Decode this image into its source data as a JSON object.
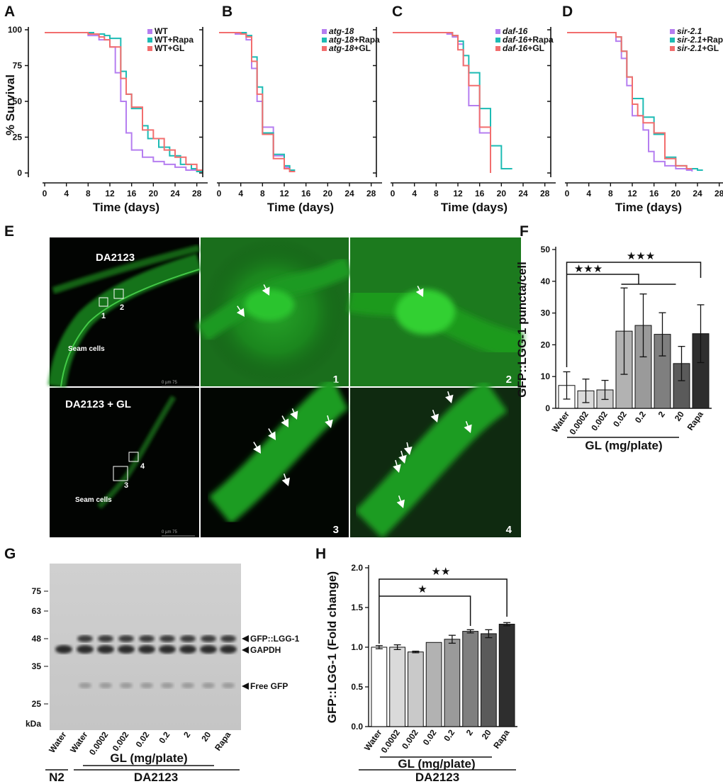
{
  "panel_labels": {
    "A": "A",
    "B": "B",
    "C": "C",
    "D": "D",
    "E": "E",
    "F": "F",
    "G": "G",
    "H": "H"
  },
  "colors": {
    "purple": "#b57ef0",
    "teal": "#1dbbb4",
    "salmon": "#f26e6e"
  },
  "survival_axis": {
    "ylabel": "% Survival",
    "xlabel": "Time (days)",
    "yticks": [
      "100",
      "75",
      "50",
      "25",
      "0"
    ],
    "xticks": [
      "0",
      "4",
      "8",
      "12",
      "16",
      "20",
      "24",
      "28"
    ]
  },
  "chart_data": [
    {
      "panel": "A",
      "type": "line",
      "xlabel": "Time (days)",
      "ylabel": "% Survival",
      "xlim": [
        0,
        30
      ],
      "ylim": [
        0,
        100
      ],
      "series": [
        {
          "name": "WT",
          "color": "#b57ef0",
          "steps": [
            [
              0,
              98
            ],
            [
              8,
              96
            ],
            [
              10,
              93
            ],
            [
              12,
              88
            ],
            [
              13,
              70
            ],
            [
              14,
              50
            ],
            [
              15,
              28
            ],
            [
              16,
              16
            ],
            [
              18,
              11
            ],
            [
              20,
              8
            ],
            [
              22,
              6
            ],
            [
              24,
              4
            ],
            [
              26,
              2
            ],
            [
              28,
              1
            ],
            [
              29,
              1
            ]
          ]
        },
        {
          "name": "WT+Rapa",
          "color": "#1dbbb4",
          "steps": [
            [
              0,
              98
            ],
            [
              9,
              97
            ],
            [
              11,
              96
            ],
            [
              12,
              94
            ],
            [
              14,
              71
            ],
            [
              15,
              55
            ],
            [
              16,
              45
            ],
            [
              18,
              33
            ],
            [
              19,
              24
            ],
            [
              21,
              18
            ],
            [
              23,
              12
            ],
            [
              25,
              6
            ],
            [
              27,
              3
            ],
            [
              28,
              1
            ],
            [
              29,
              1
            ]
          ]
        },
        {
          "name": "WT+GL",
          "color": "#f26e6e",
          "steps": [
            [
              0,
              98
            ],
            [
              8,
              97
            ],
            [
              10,
              95
            ],
            [
              11,
              93
            ],
            [
              12,
              88
            ],
            [
              14,
              66
            ],
            [
              15,
              55
            ],
            [
              16,
              46
            ],
            [
              18,
              30
            ],
            [
              20,
              24
            ],
            [
              22,
              16
            ],
            [
              24,
              11
            ],
            [
              26,
              6
            ],
            [
              28,
              2
            ],
            [
              29,
              2
            ]
          ]
        }
      ]
    },
    {
      "panel": "B",
      "type": "line",
      "xlabel": "Time (days)",
      "ylabel": "% Survival",
      "xlim": [
        0,
        30
      ],
      "ylim": [
        0,
        100
      ],
      "series": [
        {
          "name": "atg-18",
          "color": "#b57ef0",
          "steps": [
            [
              0,
              98
            ],
            [
              3,
              97
            ],
            [
              5,
              93
            ],
            [
              6,
              73
            ],
            [
              7,
              50
            ],
            [
              8,
              32
            ],
            [
              10,
              12
            ],
            [
              12,
              4
            ],
            [
              13,
              1
            ],
            [
              14,
              1
            ]
          ]
        },
        {
          "name": "atg-18+Rapa",
          "color": "#1dbbb4",
          "steps": [
            [
              0,
              98
            ],
            [
              4,
              98
            ],
            [
              5,
              96
            ],
            [
              6,
              81
            ],
            [
              7,
              60
            ],
            [
              8,
              28
            ],
            [
              10,
              13
            ],
            [
              12,
              5
            ],
            [
              13,
              2
            ],
            [
              14,
              2
            ]
          ]
        },
        {
          "name": "atg-18+GL",
          "color": "#f26e6e",
          "steps": [
            [
              0,
              98
            ],
            [
              4,
              97
            ],
            [
              5,
              95
            ],
            [
              6,
              78
            ],
            [
              7,
              55
            ],
            [
              8,
              27
            ],
            [
              10,
              10
            ],
            [
              12,
              3
            ],
            [
              13,
              1
            ],
            [
              14,
              1
            ]
          ]
        }
      ]
    },
    {
      "panel": "C",
      "type": "line",
      "xlabel": "Time (days)",
      "ylabel": "% Survival",
      "xlim": [
        0,
        30
      ],
      "ylim": [
        0,
        100
      ],
      "series": [
        {
          "name": "daf-16",
          "color": "#b57ef0",
          "steps": [
            [
              0,
              98
            ],
            [
              10,
              97
            ],
            [
              11,
              95
            ],
            [
              12,
              90
            ],
            [
              13,
              75
            ],
            [
              14,
              47
            ],
            [
              16,
              28
            ],
            [
              18,
              0
            ]
          ]
        },
        {
          "name": "daf-16+Rapa",
          "color": "#1dbbb4",
          "steps": [
            [
              0,
              98
            ],
            [
              10,
              98
            ],
            [
              11,
              96
            ],
            [
              12,
              92
            ],
            [
              13,
              82
            ],
            [
              14,
              70
            ],
            [
              16,
              45
            ],
            [
              18,
              19
            ],
            [
              20,
              3
            ],
            [
              22,
              3
            ]
          ]
        },
        {
          "name": "daf-16+GL",
          "color": "#f26e6e",
          "steps": [
            [
              0,
              98
            ],
            [
              9,
              98
            ],
            [
              11,
              96
            ],
            [
              12,
              86
            ],
            [
              13,
              75
            ],
            [
              14,
              61
            ],
            [
              16,
              32
            ],
            [
              18,
              0
            ]
          ]
        }
      ]
    },
    {
      "panel": "D",
      "type": "line",
      "xlabel": "Time (days)",
      "ylabel": "% Survival",
      "xlim": [
        0,
        30
      ],
      "ylim": [
        0,
        100
      ],
      "series": [
        {
          "name": "sir-2.1",
          "color": "#b57ef0",
          "steps": [
            [
              0,
              98
            ],
            [
              8,
              98
            ],
            [
              9,
              92
            ],
            [
              10,
              80
            ],
            [
              11,
              61
            ],
            [
              12,
              40
            ],
            [
              14,
              30
            ],
            [
              15,
              15
            ],
            [
              16,
              8
            ],
            [
              18,
              5
            ],
            [
              20,
              3
            ],
            [
              22,
              2
            ],
            [
              23,
              1
            ]
          ]
        },
        {
          "name": "sir-2.1+Rapa",
          "color": "#1dbbb4",
          "steps": [
            [
              0,
              98
            ],
            [
              8,
              98
            ],
            [
              9,
              95
            ],
            [
              10,
              85
            ],
            [
              11,
              67
            ],
            [
              12,
              52
            ],
            [
              14,
              39
            ],
            [
              16,
              27
            ],
            [
              18,
              11
            ],
            [
              20,
              5
            ],
            [
              22,
              3
            ],
            [
              24,
              2
            ],
            [
              25,
              2
            ]
          ]
        },
        {
          "name": "sir-2.1+GL",
          "color": "#f26e6e",
          "steps": [
            [
              0,
              98
            ],
            [
              8,
              98
            ],
            [
              9,
              95
            ],
            [
              10,
              85
            ],
            [
              11,
              67
            ],
            [
              12,
              48
            ],
            [
              13,
              40
            ],
            [
              14,
              35
            ],
            [
              16,
              28
            ],
            [
              18,
              10
            ],
            [
              20,
              5
            ],
            [
              22,
              3
            ],
            [
              23,
              3
            ]
          ]
        }
      ]
    },
    {
      "panel": "F",
      "type": "bar",
      "ylabel": "GFP::LGG-1 puncta/cell",
      "xlabel": "GL (mg/plate)",
      "ylim": [
        0,
        50
      ],
      "yticks": [
        "0",
        "10",
        "20",
        "30",
        "40",
        "50"
      ],
      "categories": [
        "Water",
        "0.0002",
        "0.002",
        "0.02",
        "0.2",
        "2",
        "20",
        "Rapa"
      ],
      "values": [
        7.2,
        5.5,
        5.8,
        24.3,
        26.1,
        23.3,
        14.1,
        23.5
      ],
      "errors": [
        4.3,
        3.7,
        3.0,
        13.6,
        9.9,
        6.8,
        5.4,
        9.1
      ],
      "fills": [
        "#ffffff",
        "#dadada",
        "#c9c9c9",
        "#b2b2b2",
        "#9a9a9a",
        "#7f7f7f",
        "#5a5a5a",
        "#2e2e2e"
      ],
      "gl_group_label": "GL (mg/plate)",
      "sig_marks": [
        "★★★",
        "★★★"
      ]
    },
    {
      "panel": "H",
      "type": "bar",
      "ylabel": "GFP::LGG-1 (Fold change)",
      "xlabel": "GL (mg/plate)",
      "ylim": [
        0,
        2.0
      ],
      "yticks": [
        "0.0",
        "0.5",
        "1.0",
        "1.5",
        "2.0"
      ],
      "categories": [
        "Water",
        "0.0002",
        "0.002",
        "0.02",
        "0.2",
        "2",
        "20",
        "Rapa"
      ],
      "values": [
        1.0,
        1.0,
        0.94,
        1.06,
        1.1,
        1.2,
        1.17,
        1.29
      ],
      "errors": [
        0.02,
        0.03,
        0.01,
        0.0,
        0.05,
        0.02,
        0.05,
        0.02
      ],
      "fills": [
        "#ffffff",
        "#dadada",
        "#c9c9c9",
        "#b2b2b2",
        "#9a9a9a",
        "#7f7f7f",
        "#5a5a5a",
        "#2e2e2e"
      ],
      "gl_group_label": "GL (mg/plate)",
      "strain_label": "DA2123",
      "sig_marks": [
        "★★",
        "★"
      ]
    }
  ],
  "panel_E": {
    "top_title": "DA2123",
    "bottom_title": "DA2123 + GL",
    "seam_top": "Seam cells",
    "seam_bottom": "Seam cells",
    "scale_text": "0        µm       75",
    "box_labels": [
      "1",
      "2",
      "3",
      "4"
    ]
  },
  "panel_G": {
    "mw_markers": [
      "75",
      "63",
      "48",
      "35",
      "25"
    ],
    "kda": "kDa",
    "lanes": [
      "Water",
      "Water",
      "0.0002",
      "0.002",
      "0.02",
      "0.2",
      "2",
      "20",
      "Rapa"
    ],
    "band_labels": [
      "GFP::LGG-1",
      "GAPDH",
      "Free GFP"
    ],
    "gl_label": "GL (mg/plate)",
    "n2_label": "N2",
    "strain_label": "DA2123"
  }
}
